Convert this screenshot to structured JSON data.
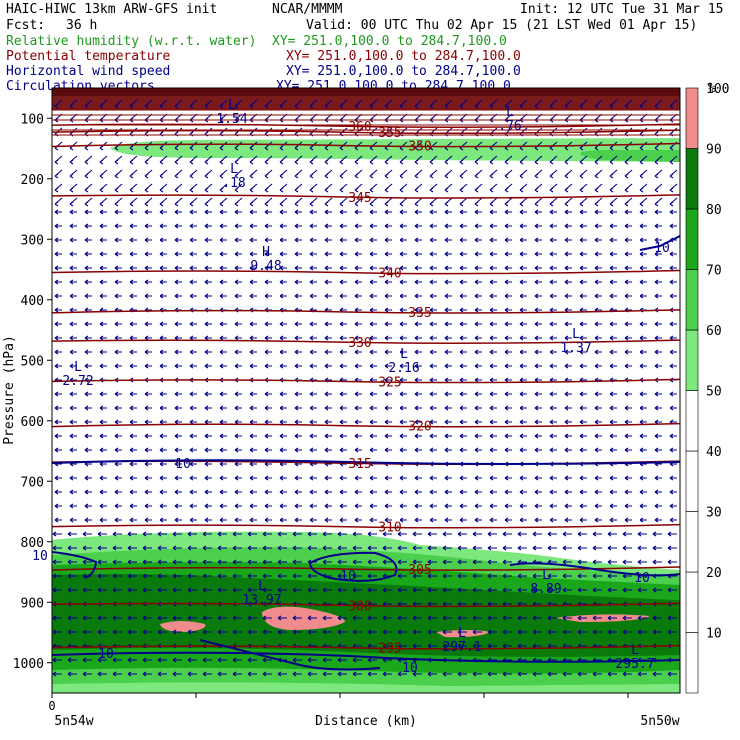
{
  "header": {
    "title": "HAIC-HIWC 13km ARW-GFS init",
    "org": "NCAR/MMMM",
    "init": "Init: 12 UTC Tue 31 Mar 15",
    "fcst_label": "Fcst:",
    "fcst_value": "36 h",
    "valid": "Valid: 00 UTC Thu 02 Apr 15 (21 LST Wed 01 Apr 15)"
  },
  "legend_lines": [
    {
      "name": "Relative humidity (w.r.t. water)",
      "xy": "XY= 251.0,100.0 to 284.7,100.0",
      "color": "#1f9a1f"
    },
    {
      "name": "Potential temperature",
      "xy": "XY= 251.0,100.0 to 284.7,100.0",
      "color": "#8b0000"
    },
    {
      "name": "Horizontal wind speed",
      "xy": "XY= 251.0,100.0 to 284.7,100.0",
      "color": "#00008b"
    },
    {
      "name": "Circulation vectors",
      "xy": "XY= 251.0,100.0 to 284.7,100.0",
      "color": "#00008b"
    }
  ],
  "colorbar": {
    "unit": "%",
    "levels": [
      10,
      20,
      30,
      40,
      50,
      60,
      70,
      80,
      90,
      100
    ],
    "colors": [
      "#ffffff",
      "#ffffff",
      "#ffffff",
      "#ffffff",
      "#ffffff",
      "#7de87d",
      "#4ccf4c",
      "#1aa81a",
      "#0a7a0a",
      "#f08c8c"
    ]
  },
  "chart_data": {
    "type": "contour",
    "xlabel": "Distance (km)",
    "ylabel": "Pressure (hPa)",
    "x_tick_labels": [
      "0"
    ],
    "x_end_labels": [
      "5n54w",
      "5n50w"
    ],
    "y_ticks": [
      100,
      200,
      300,
      400,
      500,
      600,
      700,
      800,
      900,
      1000
    ],
    "ylim": [
      50,
      1050
    ],
    "theta_contours": [
      {
        "value": 360,
        "p": 113,
        "label": "360"
      },
      {
        "value": 355,
        "p": 123,
        "label": "355"
      },
      {
        "value": 350,
        "p": 145,
        "label": "350"
      },
      {
        "value": 345,
        "p": 230,
        "label": "345"
      },
      {
        "value": 340,
        "p": 355,
        "label": "340"
      },
      {
        "value": 335,
        "p": 420,
        "label": "335"
      },
      {
        "value": 330,
        "p": 470,
        "label": "330"
      },
      {
        "value": 325,
        "p": 535,
        "label": "325"
      },
      {
        "value": 320,
        "p": 608,
        "label": "320"
      },
      {
        "value": 315,
        "p": 670,
        "label": "315"
      },
      {
        "value": 310,
        "p": 775,
        "label": "310"
      },
      {
        "value": 305,
        "p": 845,
        "label": "305"
      },
      {
        "value": 300,
        "p": 905,
        "label": "300"
      },
      {
        "value": 295,
        "p": 975,
        "label": "295"
      }
    ],
    "wind_contour_labels": [
      "10",
      "10",
      "10",
      "10",
      "10",
      "10",
      "10"
    ],
    "extrema": [
      {
        "type": "L",
        "value": "1.54"
      },
      {
        "type": "L",
        "value": ".18"
      },
      {
        "type": "H",
        "value": "9.48"
      },
      {
        "type": "L",
        "value": "2.72"
      },
      {
        "type": "L",
        "value": "2.16"
      },
      {
        "type": "L",
        "value": "1.37"
      },
      {
        "type": "L",
        "value": "8.89"
      },
      {
        "type": "L",
        "value": "13.97"
      },
      {
        "type": "L",
        "value": "297.1"
      },
      {
        "type": "L",
        "value": "295.7"
      },
      {
        "type": "L",
        "value": ".76"
      }
    ]
  }
}
